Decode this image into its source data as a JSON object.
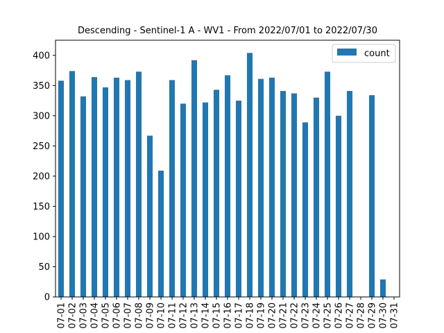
{
  "chart_data": {
    "type": "bar",
    "title": "Descending - Sentinel-1 A - WV1 - From 2022/07/01 to 2022/07/30",
    "xlabel": "",
    "ylabel": "",
    "categories": [
      "07-01",
      "07-02",
      "07-03",
      "07-04",
      "07-05",
      "07-06",
      "07-07",
      "07-08",
      "07-09",
      "07-10",
      "07-11",
      "07-12",
      "07-13",
      "07-14",
      "07-15",
      "07-16",
      "07-17",
      "07-18",
      "07-19",
      "07-20",
      "07-21",
      "07-22",
      "07-23",
      "07-24",
      "07-25",
      "07-26",
      "07-27",
      "07-28",
      "07-29",
      "07-30",
      "07-31"
    ],
    "series": [
      {
        "name": "count",
        "color": "#1f77b4",
        "values": [
          358,
          374,
          332,
          364,
          347,
          363,
          359,
          373,
          267,
          209,
          359,
          320,
          392,
          322,
          343,
          367,
          325,
          404,
          361,
          363,
          341,
          337,
          289,
          330,
          373,
          300,
          341,
          0,
          334,
          29,
          0
        ]
      }
    ],
    "ylim": [
      0,
      425
    ],
    "yticks": [
      0,
      50,
      100,
      150,
      200,
      250,
      300,
      350,
      400
    ],
    "grid": false,
    "legend_position": "top-right"
  }
}
